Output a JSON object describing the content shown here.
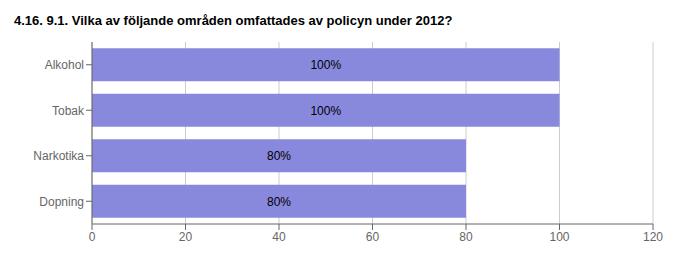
{
  "chart_data": {
    "type": "bar",
    "title": "4.16. 9.1. Vilka av följande områden omfattades av policyn under 2012?",
    "orientation": "horizontal",
    "categories": [
      "Alkohol",
      "Tobak",
      "Narkotika",
      "Dopning"
    ],
    "values": [
      100,
      100,
      80,
      80
    ],
    "value_labels": [
      "100%",
      "100%",
      "80%",
      "80%"
    ],
    "data_labels": true,
    "color": "#8888DD",
    "xlim": [
      0,
      120
    ],
    "xticks": [
      0,
      20,
      40,
      60,
      80,
      100,
      120
    ],
    "grid": true
  }
}
